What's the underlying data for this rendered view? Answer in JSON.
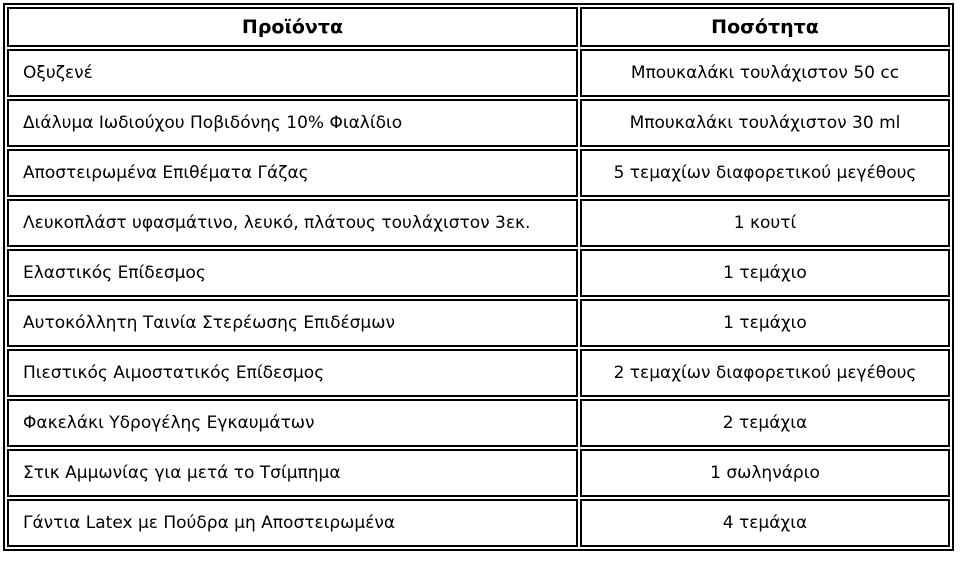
{
  "headers": {
    "product": "Προϊόντα",
    "quantity": "Ποσότητα"
  },
  "rows": [
    {
      "product": "Οξυζενέ",
      "quantity": "Μπουκαλάκι τουλάχιστον 50 cc"
    },
    {
      "product": "Διάλυμα Ιωδιούχου Ποβιδόνης 10% Φιαλίδιο",
      "quantity": "Μπουκαλάκι τουλάχιστον 30 ml"
    },
    {
      "product": "Αποστειρωμένα Επιθέματα Γάζας",
      "quantity": "5 τεμαχίων διαφορετικού μεγέθους"
    },
    {
      "product": "Λευκοπλάστ υφασμάτινο, λευκό, πλάτους τουλάχιστον 3εκ.",
      "quantity": "1 κουτί"
    },
    {
      "product": "Ελαστικός Επίδεσμος",
      "quantity": "1 τεμάχιο"
    },
    {
      "product": "Αυτοκόλλητη Ταινία Στερέωσης Επιδέσμων",
      "quantity": "1 τεμάχιο"
    },
    {
      "product": "Πιεστικός Αιμοστατικός Επίδεσμος",
      "quantity": "2 τεμαχίων διαφορετικού μεγέθους"
    },
    {
      "product": "Φακελάκι Υδρογέλης Εγκαυμάτων",
      "quantity": "2 τεμάχια"
    },
    {
      "product": "Στικ Αμμωνίας για μετά το Τσίμπημα",
      "quantity": "1 σωληνάριο"
    },
    {
      "product": "Γάντια Latex με Πούδρα μη Αποστειρωμένα",
      "quantity": "4 τεμάχια"
    }
  ]
}
